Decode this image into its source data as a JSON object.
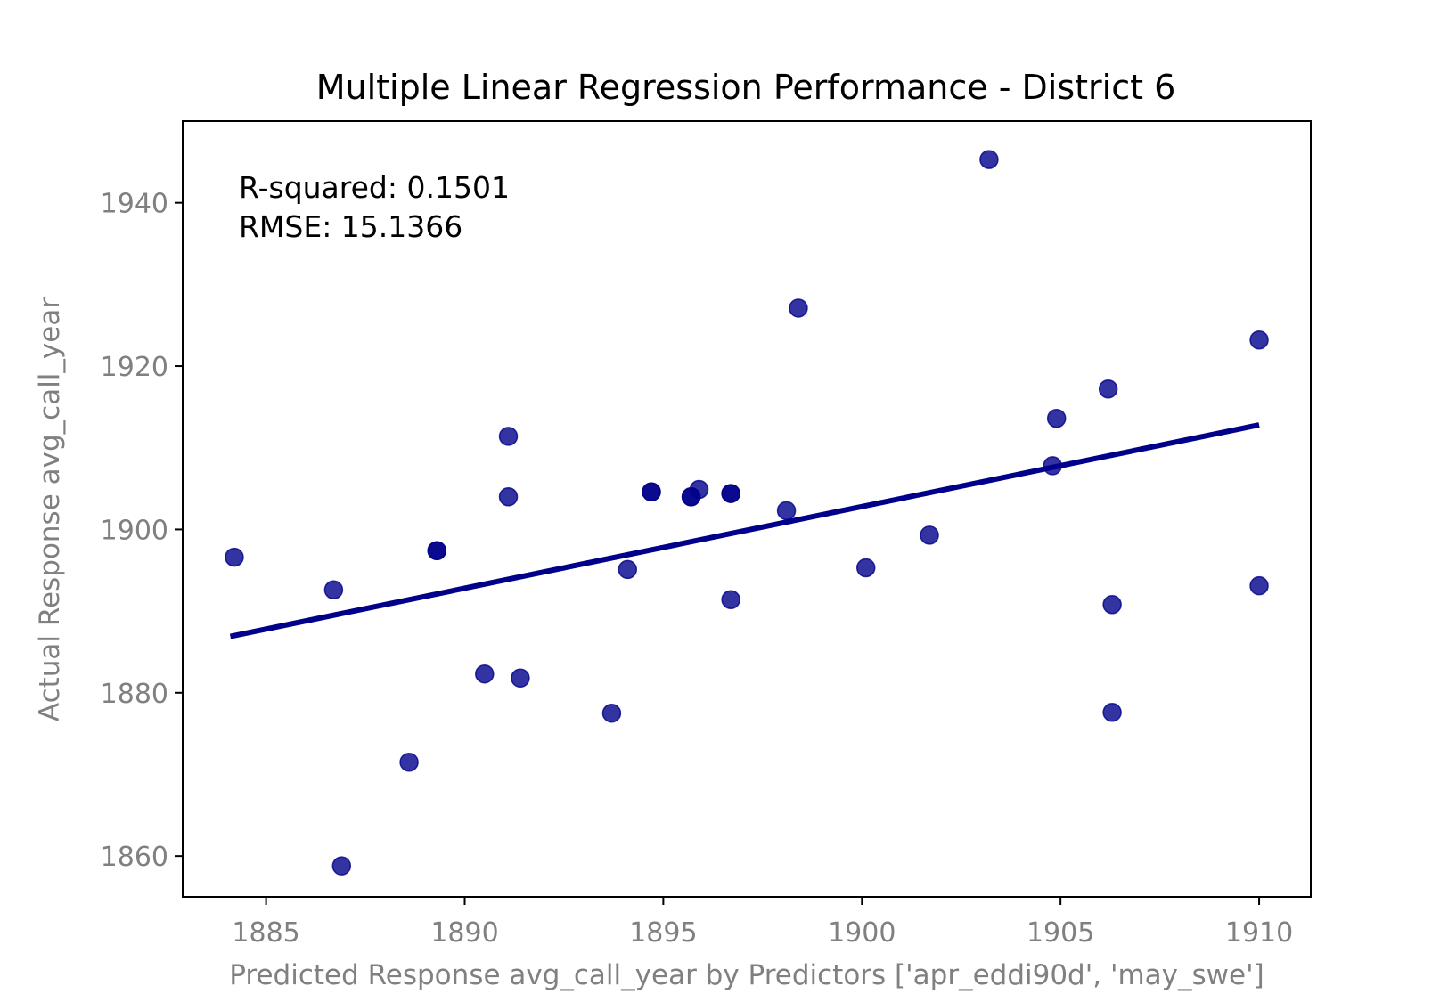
{
  "chart_data": {
    "type": "scatter",
    "title": "Multiple Linear Regression Performance - District 6",
    "xlabel": "Predicted Response avg_call_year by Predictors ['apr_eddi90d', 'may_swe']",
    "ylabel": "Actual Response avg_call_year",
    "xlim": [
      1882.9,
      1911.3
    ],
    "ylim": [
      1855.0,
      1950.0
    ],
    "x_ticks": [
      1885,
      1890,
      1895,
      1900,
      1905,
      1910
    ],
    "y_ticks": [
      1860,
      1880,
      1900,
      1920,
      1940
    ],
    "grid": false,
    "annotations": [
      "R-squared: 0.1501",
      "RMSE: 15.1366"
    ],
    "point_color": "#00008b",
    "line_color": "#00008b",
    "points": [
      {
        "x": 1884.2,
        "y": 1896.6
      },
      {
        "x": 1886.7,
        "y": 1892.6
      },
      {
        "x": 1886.9,
        "y": 1858.8
      },
      {
        "x": 1888.6,
        "y": 1871.5
      },
      {
        "x": 1889.3,
        "y": 1897.4
      },
      {
        "x": 1889.3,
        "y": 1897.4
      },
      {
        "x": 1890.5,
        "y": 1882.3
      },
      {
        "x": 1891.1,
        "y": 1911.4
      },
      {
        "x": 1891.1,
        "y": 1904.0
      },
      {
        "x": 1891.4,
        "y": 1881.8
      },
      {
        "x": 1893.7,
        "y": 1877.5
      },
      {
        "x": 1894.1,
        "y": 1895.1
      },
      {
        "x": 1894.7,
        "y": 1904.6
      },
      {
        "x": 1894.7,
        "y": 1904.6
      },
      {
        "x": 1895.7,
        "y": 1904.0
      },
      {
        "x": 1895.7,
        "y": 1904.0
      },
      {
        "x": 1895.9,
        "y": 1904.9
      },
      {
        "x": 1896.7,
        "y": 1904.4
      },
      {
        "x": 1896.7,
        "y": 1904.4
      },
      {
        "x": 1896.7,
        "y": 1891.4
      },
      {
        "x": 1898.1,
        "y": 1902.3
      },
      {
        "x": 1898.4,
        "y": 1927.1
      },
      {
        "x": 1900.1,
        "y": 1895.3
      },
      {
        "x": 1901.7,
        "y": 1899.3
      },
      {
        "x": 1903.2,
        "y": 1945.3
      },
      {
        "x": 1904.8,
        "y": 1907.8
      },
      {
        "x": 1904.9,
        "y": 1913.6
      },
      {
        "x": 1906.2,
        "y": 1917.2
      },
      {
        "x": 1906.3,
        "y": 1890.8
      },
      {
        "x": 1906.3,
        "y": 1877.6
      },
      {
        "x": 1910.0,
        "y": 1923.2
      },
      {
        "x": 1910.0,
        "y": 1893.1
      }
    ],
    "fit_line": {
      "x": [
        1884.1,
        1910.0
      ],
      "y": [
        1886.9,
        1912.8
      ]
    }
  }
}
